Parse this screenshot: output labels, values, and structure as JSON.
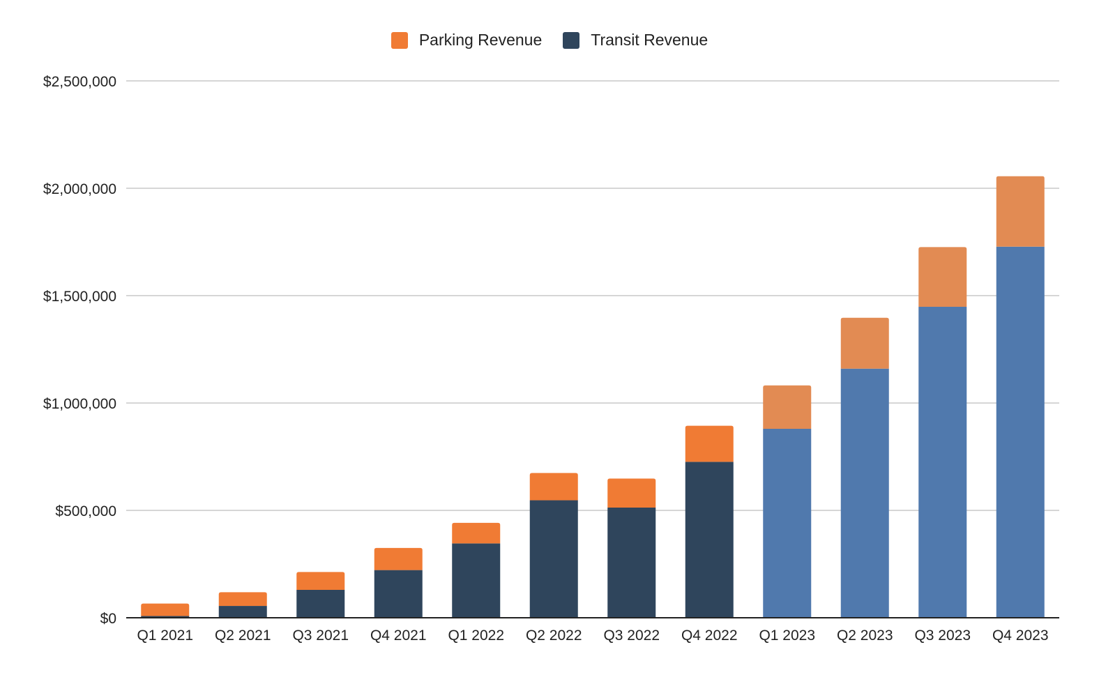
{
  "chart_data": {
    "type": "bar",
    "stacked": true,
    "title": "",
    "xlabel": "",
    "ylabel": "",
    "categories": [
      "Q1 2021",
      "Q2 2021",
      "Q3 2021",
      "Q4 2021",
      "Q1 2022",
      "Q2 2022",
      "Q3 2022",
      "Q4 2022",
      "Q1 2023",
      "Q2 2023",
      "Q3 2023",
      "Q4 2023"
    ],
    "series": [
      {
        "name": "Transit Revenue",
        "color": "#2f455c",
        "values": [
          8000,
          55000,
          130000,
          222000,
          346000,
          547000,
          513000,
          726000,
          880000,
          1160000,
          1448000,
          1728000
        ]
      },
      {
        "name": "Parking Revenue",
        "color": "#f07b34",
        "values": [
          58000,
          64000,
          83000,
          103000,
          96000,
          127000,
          135000,
          168000,
          202000,
          237000,
          278000,
          328000
        ]
      }
    ],
    "projected_from_index": 8,
    "projected_colors": {
      "Transit Revenue": "#5079ad",
      "Parking Revenue": "#e28b53"
    },
    "ylim": [
      0,
      2500000
    ],
    "yticks": [
      0,
      500000,
      1000000,
      1500000,
      2000000,
      2500000
    ],
    "ytick_labels": [
      "$0",
      "$500,000",
      "$1,000,000",
      "$1,500,000",
      "$2,000,000",
      "$2,500,000"
    ],
    "grid": true,
    "legend": {
      "position": "top-center",
      "entries": [
        "Parking Revenue",
        "Transit Revenue"
      ]
    }
  }
}
